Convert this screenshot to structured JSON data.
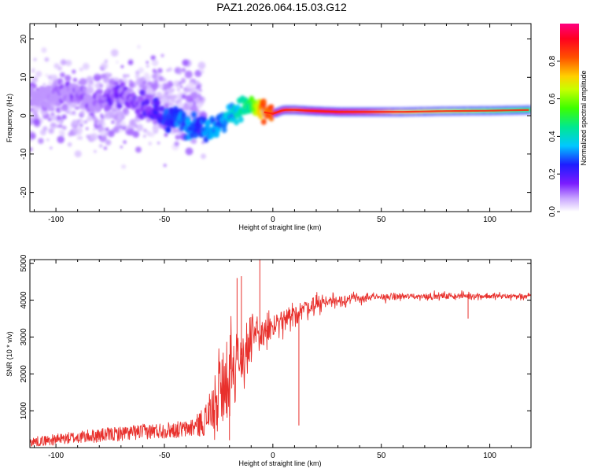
{
  "title": "PAZ1.2026.064.15.03.G12",
  "chart_data": [
    {
      "type": "heatmap",
      "title": "PAZ1.2026.064.15.03.G12",
      "xlabel": "Height of straight line (km)",
      "ylabel": "Frequency (Hz)",
      "xlim": [
        -112,
        119
      ],
      "ylim": [
        -25,
        24
      ],
      "xticks": [
        -100,
        -50,
        0,
        50,
        100
      ],
      "yticks": [
        -20,
        -10,
        0,
        10,
        20
      ],
      "ridge": {
        "x": [
          -112,
          -100,
          -95,
          -90,
          -85,
          -80,
          -75,
          -70,
          -65,
          -60,
          -55,
          -50,
          -45,
          -40,
          -35,
          -30,
          -25,
          -20,
          -15,
          -10,
          -5,
          0,
          5,
          10,
          20,
          30,
          40,
          60,
          80,
          100,
          119
        ],
        "freq": [
          5,
          5,
          6.5,
          6,
          4,
          3,
          6,
          5,
          4,
          3,
          1,
          -1,
          0,
          -2,
          -3,
          -3.5,
          -2.5,
          0,
          2,
          2.5,
          1,
          0.5,
          1.5,
          1.5,
          1.2,
          1,
          1,
          1,
          1.2,
          1.3,
          1.5
        ],
        "amplitude": [
          0.05,
          0.12,
          0.15,
          0.15,
          0.15,
          0.15,
          0.18,
          0.18,
          0.2,
          0.2,
          0.25,
          0.3,
          0.35,
          0.35,
          0.3,
          0.35,
          0.38,
          0.4,
          0.45,
          0.55,
          0.85,
          0.9,
          0.85,
          0.8,
          0.9,
          0.9,
          0.85,
          0.7,
          0.65,
          0.6,
          0.55
        ]
      },
      "colorbar": {
        "label": "Normalized spectral amplitude",
        "range": [
          0,
          1
        ],
        "ticks": [
          0.0,
          0.2,
          0.4,
          0.6,
          0.8
        ],
        "tick_labels": [
          "0.0",
          "0.2",
          "0.4",
          "0.6",
          "0.8"
        ]
      }
    },
    {
      "type": "line",
      "title": "",
      "xlabel": "Height of straight line (km)",
      "ylabel": "SNR (10 * v/v)",
      "xlim": [
        -112,
        119
      ],
      "ylim": [
        0,
        5100
      ],
      "xticks": [
        -100,
        -50,
        0,
        50,
        100
      ],
      "yticks": [
        1000,
        2000,
        3000,
        4000,
        5000
      ],
      "color": "#e8302c",
      "series": [
        {
          "name": "SNR",
          "x": [
            -112,
            -100,
            -90,
            -80,
            -70,
            -60,
            -50,
            -40,
            -35,
            -30,
            -27,
            -25,
            -22,
            -20,
            -18,
            -16,
            -15,
            -12,
            -10,
            -8,
            -5,
            -2,
            0,
            3,
            5,
            8,
            10,
            12,
            15,
            20,
            25,
            30,
            40,
            50,
            60,
            80,
            90,
            100,
            119
          ],
          "center": [
            150,
            220,
            280,
            330,
            380,
            430,
            470,
            500,
            600,
            800,
            1200,
            1600,
            1900,
            2100,
            2300,
            2400,
            2500,
            2600,
            2800,
            3000,
            3100,
            3200,
            3250,
            3350,
            3400,
            3500,
            3600,
            3700,
            3800,
            3900,
            3970,
            4000,
            4050,
            4080,
            4100,
            4110,
            4120,
            4110,
            4100
          ],
          "noise": [
            130,
            150,
            170,
            190,
            200,
            210,
            220,
            230,
            300,
            500,
            900,
            1100,
            1300,
            1300,
            1300,
            1200,
            1100,
            900,
            800,
            700,
            600,
            500,
            450,
            400,
            380,
            360,
            340,
            320,
            300,
            280,
            250,
            200,
            150,
            110,
            100,
            100,
            100,
            100,
            100
          ]
        }
      ],
      "spikes": [
        {
          "x": -16.5,
          "y": 4600
        },
        {
          "x": -14.5,
          "y": 4650
        },
        {
          "x": -6,
          "y": 5100
        },
        {
          "x": -20,
          "y": 200
        },
        {
          "x": 12,
          "y": 600
        },
        {
          "x": 90,
          "y": 3500
        }
      ]
    }
  ]
}
